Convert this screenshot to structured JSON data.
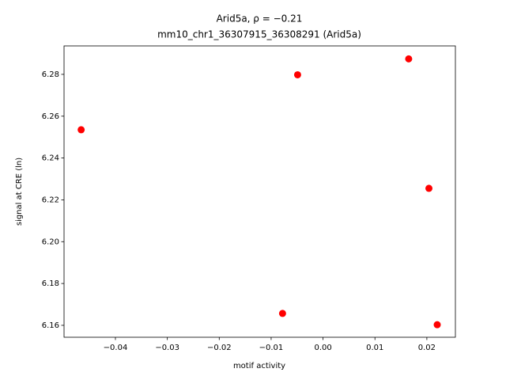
{
  "chart_data": {
    "type": "scatter",
    "title": "Arid5a, ρ = −0.21",
    "subtitle": "mm10_chr1_36307915_36308291 (Arid5a)",
    "x_label": "motif activity",
    "y_label": "signal at CRE (ln)",
    "color": "#ff0000",
    "x": [
      -0.0466,
      -0.0049,
      0.0165,
      0.0204,
      -0.0078,
      0.022
    ],
    "values": [
      6.2535,
      6.2798,
      6.2874,
      6.2255,
      6.1657,
      6.1603
    ],
    "xlim": [
      -0.0499,
      0.0255
    ],
    "ylim": [
      6.1543,
      6.2936
    ],
    "xticks": [
      {
        "value": -0.04,
        "label": "−0.04"
      },
      {
        "value": -0.03,
        "label": "−0.03"
      },
      {
        "value": -0.02,
        "label": "−0.02"
      },
      {
        "value": -0.01,
        "label": "−0.01"
      },
      {
        "value": 0,
        "label": "0.00"
      },
      0.01,
      0.02
    ],
    "yticks": [
      6.16,
      6.18,
      {
        "value": 6.2,
        "label": "6.20"
      },
      6.22,
      6.24,
      6.26,
      6.28
    ],
    "grid": false
  }
}
